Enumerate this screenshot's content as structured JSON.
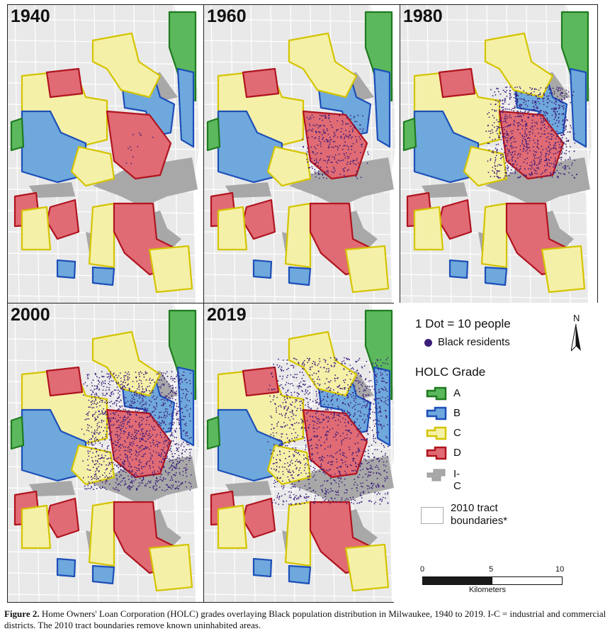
{
  "panels": [
    {
      "year": "1940"
    },
    {
      "year": "1960"
    },
    {
      "year": "1980"
    },
    {
      "year": "2000"
    },
    {
      "year": "2019"
    }
  ],
  "legend": {
    "dot_scale": "1 Dot = 10 people",
    "dot_label": "Black residents",
    "holc_title": "HOLC Grade",
    "grades": [
      {
        "label": "A",
        "fill": "#5cb85c",
        "stroke": "#1f7a1f"
      },
      {
        "label": "B",
        "fill": "#6fa8dc",
        "stroke": "#1c4fb8"
      },
      {
        "label": "C",
        "fill": "#f5f0a8",
        "stroke": "#d4c400"
      },
      {
        "label": "D",
        "fill": "#e06b74",
        "stroke": "#b0141f"
      },
      {
        "label": "I-C",
        "fill": "#a8a8a8",
        "stroke": "#8a8a8a"
      }
    ],
    "tract_label_line1": "2010 tract",
    "tract_label_line2": "boundaries*",
    "north": "N",
    "scale_ticks": [
      "0",
      "5",
      "10"
    ],
    "scale_unit": "Kilometers",
    "dot_color": "#3b1d7a"
  },
  "caption": {
    "label": "Figure 2.",
    "text": " Home Owners' Loan Corporation (HOLC) grades overlaying Black population distribution in Milwaukee, 1940 to 2019. I-C = industrial and commercial districts. The 2010 tract boundaries remove known uninhabited areas."
  }
}
